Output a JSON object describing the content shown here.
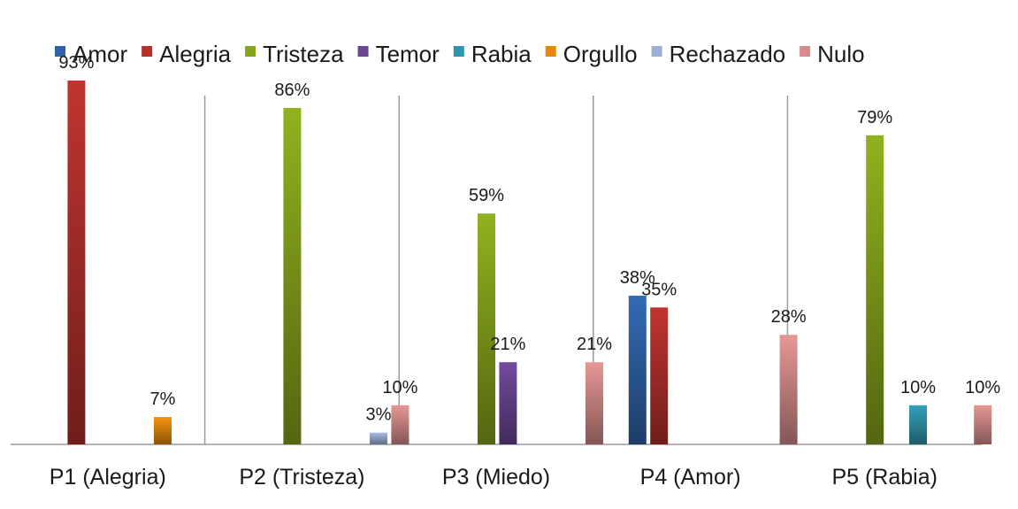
{
  "chart_data": {
    "type": "bar",
    "title": "",
    "xlabel": "",
    "ylabel": "",
    "ylim": [
      0,
      100
    ],
    "grid": "vertical separators between categories",
    "legend_position": "top",
    "value_suffix": "%",
    "categories": [
      "P1 (Alegria)",
      "P2 (Tristeza)",
      "P3 (Miedo)",
      "P4 (Amor)",
      "P5 (Rabia)"
    ],
    "series": [
      {
        "name": "Amor",
        "color": "#2f63a8",
        "values": [
          null,
          null,
          null,
          38,
          null
        ]
      },
      {
        "name": "Alegria",
        "color": "#b3302c",
        "values": [
          93,
          null,
          null,
          35,
          null
        ]
      },
      {
        "name": "Tristeza",
        "color": "#86a51c",
        "values": [
          null,
          86,
          59,
          null,
          79
        ]
      },
      {
        "name": "Temor",
        "color": "#6a4592",
        "values": [
          null,
          null,
          21,
          null,
          null
        ]
      },
      {
        "name": "Rabia",
        "color": "#3094ac",
        "values": [
          null,
          null,
          null,
          null,
          10
        ]
      },
      {
        "name": "Orgullo",
        "color": "#e4880f",
        "values": [
          7,
          null,
          null,
          null,
          null
        ]
      },
      {
        "name": "Rechazado",
        "color": "#9bafd6",
        "values": [
          null,
          3,
          null,
          null,
          null
        ]
      },
      {
        "name": "Nulo",
        "color": "#d58c8a",
        "values": [
          null,
          10,
          21,
          28,
          10
        ]
      }
    ]
  }
}
